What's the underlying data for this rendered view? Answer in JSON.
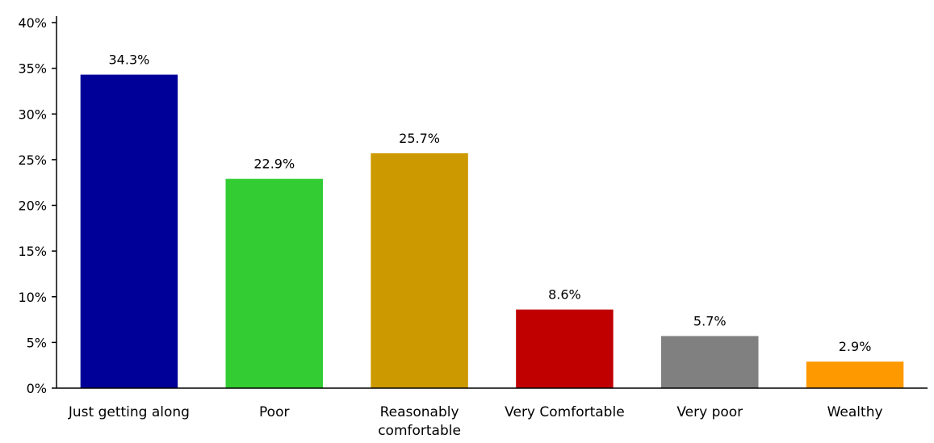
{
  "chart_data": {
    "type": "bar",
    "categories": [
      "Just getting along",
      "Poor",
      "Reasonably comfortable",
      "Very Comfortable",
      "Very poor",
      "Wealthy"
    ],
    "category_label_lines": [
      [
        "Just getting along"
      ],
      [
        "Poor"
      ],
      [
        "Reasonably",
        "comfortable"
      ],
      [
        "Very Comfortable"
      ],
      [
        "Very poor"
      ],
      [
        "Wealthy"
      ]
    ],
    "values": [
      34.3,
      22.9,
      25.7,
      8.6,
      5.7,
      2.9
    ],
    "data_labels": [
      "34.3%",
      "22.9%",
      "25.7%",
      "8.6%",
      "5.7%",
      "2.9%"
    ],
    "colors": [
      "#000099",
      "#33cc33",
      "#cc9900",
      "#c00000",
      "#808080",
      "#ff9900"
    ],
    "ylim": [
      0,
      40
    ],
    "yticks": [
      0,
      5,
      10,
      15,
      20,
      25,
      30,
      35,
      40
    ],
    "ytick_labels": [
      "0%",
      "5%",
      "10%",
      "15%",
      "20%",
      "25%",
      "30%",
      "35%",
      "40%"
    ],
    "grid": false,
    "legend": "none",
    "title": "",
    "xlabel": "",
    "ylabel": ""
  }
}
